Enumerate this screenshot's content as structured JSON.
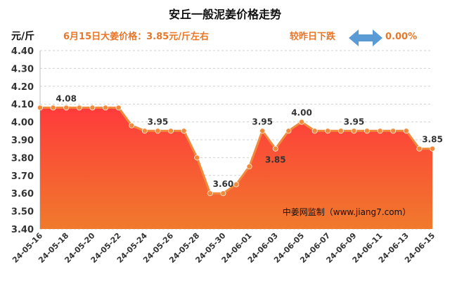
{
  "header": {
    "title": "安丘一般泥姜价格走势",
    "unit": "元/斤",
    "headline": "6月15日大姜价格：3.85元/斤左右",
    "change_label": "较昨日下跌",
    "change_value": "0.00%"
  },
  "watermark": "中姜网监制（www.jiang7.com）",
  "colors": {
    "line": "#f08a3c",
    "area_top": "#ff3b3b",
    "area_bottom": "#f07a2c",
    "arrow": "#5b9bd5",
    "accent_text": "#e8772a"
  },
  "chart_data": {
    "type": "area",
    "title": "安丘一般泥姜价格走势",
    "ylabel": "元/斤",
    "ylim": [
      3.4,
      4.4
    ],
    "yticks": [
      "3.40",
      "3.50",
      "3.60",
      "3.70",
      "3.80",
      "3.90",
      "4.00",
      "4.10",
      "4.20",
      "4.30",
      "4.40"
    ],
    "grid": true,
    "x": [
      "24-05-16",
      "24-05-17",
      "24-05-18",
      "24-05-19",
      "24-05-20",
      "24-05-21",
      "24-05-22",
      "24-05-23",
      "24-05-24",
      "24-05-25",
      "24-05-26",
      "24-05-27",
      "24-05-28",
      "24-05-29",
      "24-05-30",
      "24-05-31",
      "24-06-01",
      "24-06-02",
      "24-06-03",
      "24-06-04",
      "24-06-05",
      "24-06-06",
      "24-06-07",
      "24-06-08",
      "24-06-09",
      "24-06-10",
      "24-06-11",
      "24-06-12",
      "24-06-13",
      "24-06-14",
      "24-06-15"
    ],
    "xtick_labels": [
      "24-05-16",
      "24-05-18",
      "24-05-20",
      "24-05-22",
      "24-05-24",
      "24-05-26",
      "24-05-28",
      "24-05-30",
      "24-06-01",
      "24-06-03",
      "24-06-05",
      "24-06-07",
      "24-06-09",
      "24-06-11",
      "24-06-13",
      "24-06-15"
    ],
    "values": [
      4.08,
      4.08,
      4.08,
      4.08,
      4.08,
      4.08,
      4.08,
      3.98,
      3.95,
      3.95,
      3.95,
      3.95,
      3.8,
      3.6,
      3.6,
      3.65,
      3.75,
      3.95,
      3.85,
      3.95,
      4.0,
      3.95,
      3.95,
      3.95,
      3.95,
      3.95,
      3.95,
      3.95,
      3.95,
      3.85,
      3.85
    ],
    "data_labels": [
      {
        "index": 2,
        "text": "4.08"
      },
      {
        "index": 9,
        "text": "3.95"
      },
      {
        "index": 14,
        "text": "3.60"
      },
      {
        "index": 17,
        "text": "3.95"
      },
      {
        "index": 18,
        "text": "3.85"
      },
      {
        "index": 20,
        "text": "4.00"
      },
      {
        "index": 24,
        "text": "3.95"
      },
      {
        "index": 30,
        "text": "3.85"
      }
    ]
  }
}
